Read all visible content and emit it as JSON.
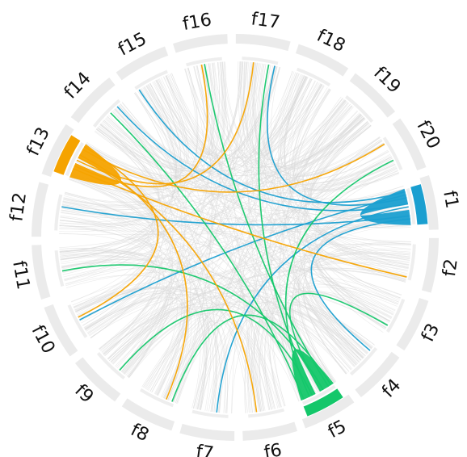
{
  "chart_data": {
    "type": "chord",
    "title": "",
    "sectors": [
      "f1",
      "f2",
      "f3",
      "f4",
      "f5",
      "f6",
      "f7",
      "f8",
      "f9",
      "f10",
      "f11",
      "f12",
      "f13",
      "f14",
      "f15",
      "f16",
      "f17",
      "f18",
      "f19",
      "f20"
    ],
    "highlight_sectors": [
      {
        "name": "f1",
        "color": "#1a9fd0"
      },
      {
        "name": "f5",
        "color": "#14c76a"
      },
      {
        "name": "f13",
        "color": "#f5a300"
      }
    ],
    "colors": {
      "sector_track": "#ebebeb",
      "background_links": "#d9d9d9",
      "f1": "#1a9fd0",
      "f5": "#14c76a",
      "f13": "#f5a300"
    },
    "strong_links": [
      {
        "from": "f1",
        "to": "f1",
        "weight": 10
      },
      {
        "from": "f5",
        "to": "f5",
        "weight": 10
      },
      {
        "from": "f13",
        "to": "f13",
        "weight": 10
      }
    ],
    "colored_links": [
      {
        "from": "f1",
        "to": "f15"
      },
      {
        "from": "f1",
        "to": "f14"
      },
      {
        "from": "f1",
        "to": "f12"
      },
      {
        "from": "f1",
        "to": "f10"
      },
      {
        "from": "f1",
        "to": "f7"
      },
      {
        "from": "f1",
        "to": "f4"
      },
      {
        "from": "f1",
        "to": "f17"
      },
      {
        "from": "f5",
        "to": "f17"
      },
      {
        "from": "f5",
        "to": "f14"
      },
      {
        "from": "f5",
        "to": "f11"
      },
      {
        "from": "f5",
        "to": "f9"
      },
      {
        "from": "f5",
        "to": "f8"
      },
      {
        "from": "f5",
        "to": "f3"
      },
      {
        "from": "f5",
        "to": "f20"
      },
      {
        "from": "f5",
        "to": "f16"
      },
      {
        "from": "f13",
        "to": "f17"
      },
      {
        "from": "f13",
        "to": "f20"
      },
      {
        "from": "f13",
        "to": "f2"
      },
      {
        "from": "f13",
        "to": "f6"
      },
      {
        "from": "f13",
        "to": "f10"
      },
      {
        "from": "f13",
        "to": "f16"
      },
      {
        "from": "f13",
        "to": "f8"
      }
    ]
  }
}
